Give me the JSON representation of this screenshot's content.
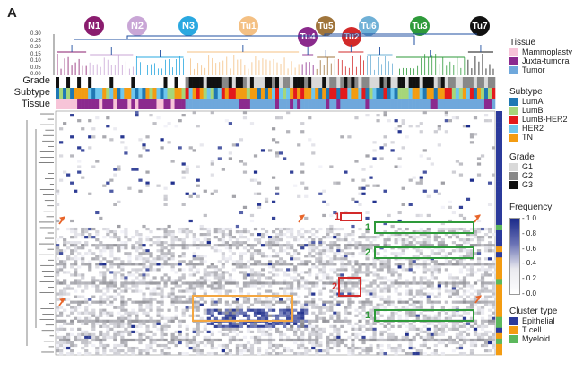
{
  "panel": {
    "letter": "A"
  },
  "clusters": [
    {
      "label": "N1",
      "color": "#8a1c6e"
    },
    {
      "label": "N2",
      "color": "#c9a6d6"
    },
    {
      "label": "N3",
      "color": "#2aa8e0"
    },
    {
      "label": "Tu1",
      "color": "#f4c083"
    },
    {
      "label": "Tu4",
      "color": "#8a2a8c"
    },
    {
      "label": "Tu5",
      "color": "#a0753c"
    },
    {
      "label": "Tu2",
      "color": "#d22a2a"
    },
    {
      "label": "Tu6",
      "color": "#6fb0d6"
    },
    {
      "label": "Tu3",
      "color": "#2e9a3a"
    },
    {
      "label": "Tu7",
      "color": "#111111"
    }
  ],
  "dendrogram_ticks": [
    "0.30",
    "0.25",
    "0.20",
    "0.15",
    "0.10",
    "0.05",
    "0.00"
  ],
  "row_labels": {
    "grade": "Grade",
    "subtype": "Subtype",
    "tissue": "Tissue"
  },
  "legends": {
    "tissue": {
      "title": "Tissue",
      "items": [
        {
          "label": "Mammoplasty",
          "color": "#f7c4d8"
        },
        {
          "label": "Juxta-tumoral",
          "color": "#8b2a8e"
        },
        {
          "label": "Tumor",
          "color": "#6fa8dc"
        }
      ]
    },
    "subtype": {
      "title": "Subtype",
      "items": [
        {
          "label": "LumA",
          "color": "#1f78b4"
        },
        {
          "label": "LumB",
          "color": "#a6d67a"
        },
        {
          "label": "LumB-HER2",
          "color": "#e31a1c"
        },
        {
          "label": "HER2",
          "color": "#6ec6ee"
        },
        {
          "label": "TN",
          "color": "#f39c12"
        }
      ]
    },
    "grade": {
      "title": "Grade",
      "items": [
        {
          "label": "G1",
          "color": "#d9d9d9"
        },
        {
          "label": "G2",
          "color": "#888888"
        },
        {
          "label": "G3",
          "color": "#111111"
        }
      ]
    },
    "frequency": {
      "title": "Frequency",
      "ticks": [
        "1.0",
        "0.8",
        "0.6",
        "0.4",
        "0.2",
        "0.0"
      ]
    },
    "cluster_type": {
      "title": "Cluster type",
      "items": [
        {
          "label": "Epithelial",
          "color": "#2b3a9b"
        },
        {
          "label": "T cell",
          "color": "#f39c12"
        },
        {
          "label": "Myeloid",
          "color": "#5cb85c"
        }
      ]
    }
  },
  "box_annotations": [
    "1",
    "1",
    "2",
    "2",
    "1"
  ],
  "colors": {
    "heat_low": "#ffffff",
    "heat_high": "#1a2a8a",
    "arrow": "#e8652a"
  }
}
